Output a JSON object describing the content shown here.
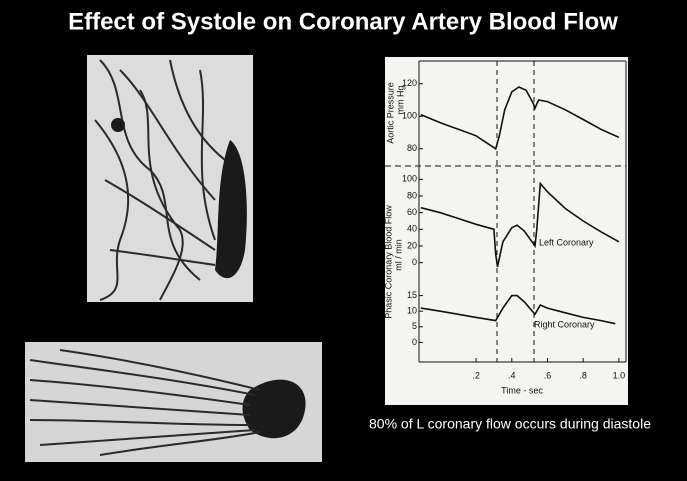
{
  "title": "Effect of Systole on Coronary Artery Blood Flow",
  "caption": "80% of L coronary flow occurs during diastole",
  "flow_label": "Phasic Coronary  Blood Flow",
  "flow_unit": "ml / min",
  "chart_data": [
    {
      "type": "line",
      "ylabel": "Aortic Pressure",
      "yunit": "mm Hg",
      "xlim": [
        -0.12,
        1.04
      ],
      "ylim": [
        70,
        134
      ],
      "yticks": [
        80,
        100,
        120
      ],
      "x": [
        -0.11,
        0.0,
        0.1,
        0.2,
        0.31,
        0.33,
        0.36,
        0.4,
        0.44,
        0.48,
        0.52,
        0.53,
        0.55,
        0.6,
        0.7,
        0.8,
        0.9,
        1.0
      ],
      "series": [
        {
          "color": "#111111",
          "values": [
            101,
            96,
            92,
            88,
            80,
            88,
            104,
            115,
            118,
            116,
            108,
            105,
            110,
            109,
            104,
            98,
            92,
            87
          ]
        }
      ]
    },
    {
      "type": "line",
      "xlim": [
        -0.12,
        1.04
      ],
      "ylim": [
        -10,
        110
      ],
      "yticks": [
        0,
        20,
        40,
        60,
        80,
        100
      ],
      "x": [
        -0.11,
        0.0,
        0.1,
        0.2,
        0.3,
        0.31,
        0.32,
        0.35,
        0.4,
        0.43,
        0.47,
        0.53,
        0.54,
        0.56,
        0.6,
        0.7,
        0.8,
        0.9,
        1.0
      ],
      "series": [
        {
          "name": "Left Coronary",
          "color": "#111111",
          "values": [
            66,
            60,
            53,
            46,
            40,
            10,
            -5,
            25,
            42,
            45,
            38,
            20,
            40,
            95,
            85,
            65,
            50,
            37,
            25
          ]
        }
      ]
    },
    {
      "type": "line",
      "xlim": [
        -0.12,
        1.04
      ],
      "ylim": [
        -5,
        20
      ],
      "yticks": [
        0,
        5,
        10,
        15
      ],
      "xticks": [
        {
          "value": 0.2,
          "label": ".2"
        },
        {
          "value": 0.4,
          "label": ".4"
        },
        {
          "value": 0.6,
          "label": ".6"
        },
        {
          "value": 0.8,
          "label": ".8"
        },
        {
          "value": 1.0,
          "label": "1.0"
        }
      ],
      "xlabel": "Time - sec",
      "x": [
        -0.11,
        0.0,
        0.1,
        0.2,
        0.31,
        0.35,
        0.4,
        0.43,
        0.47,
        0.53,
        0.56,
        0.6,
        0.7,
        0.8,
        0.9,
        0.98
      ],
      "series": [
        {
          "name": "Right Coronary",
          "color": "#111111",
          "values": [
            11,
            10,
            9,
            8,
            7,
            11,
            15,
            15,
            13,
            9,
            12,
            11,
            9.5,
            8,
            7,
            6
          ]
        }
      ]
    }
  ]
}
